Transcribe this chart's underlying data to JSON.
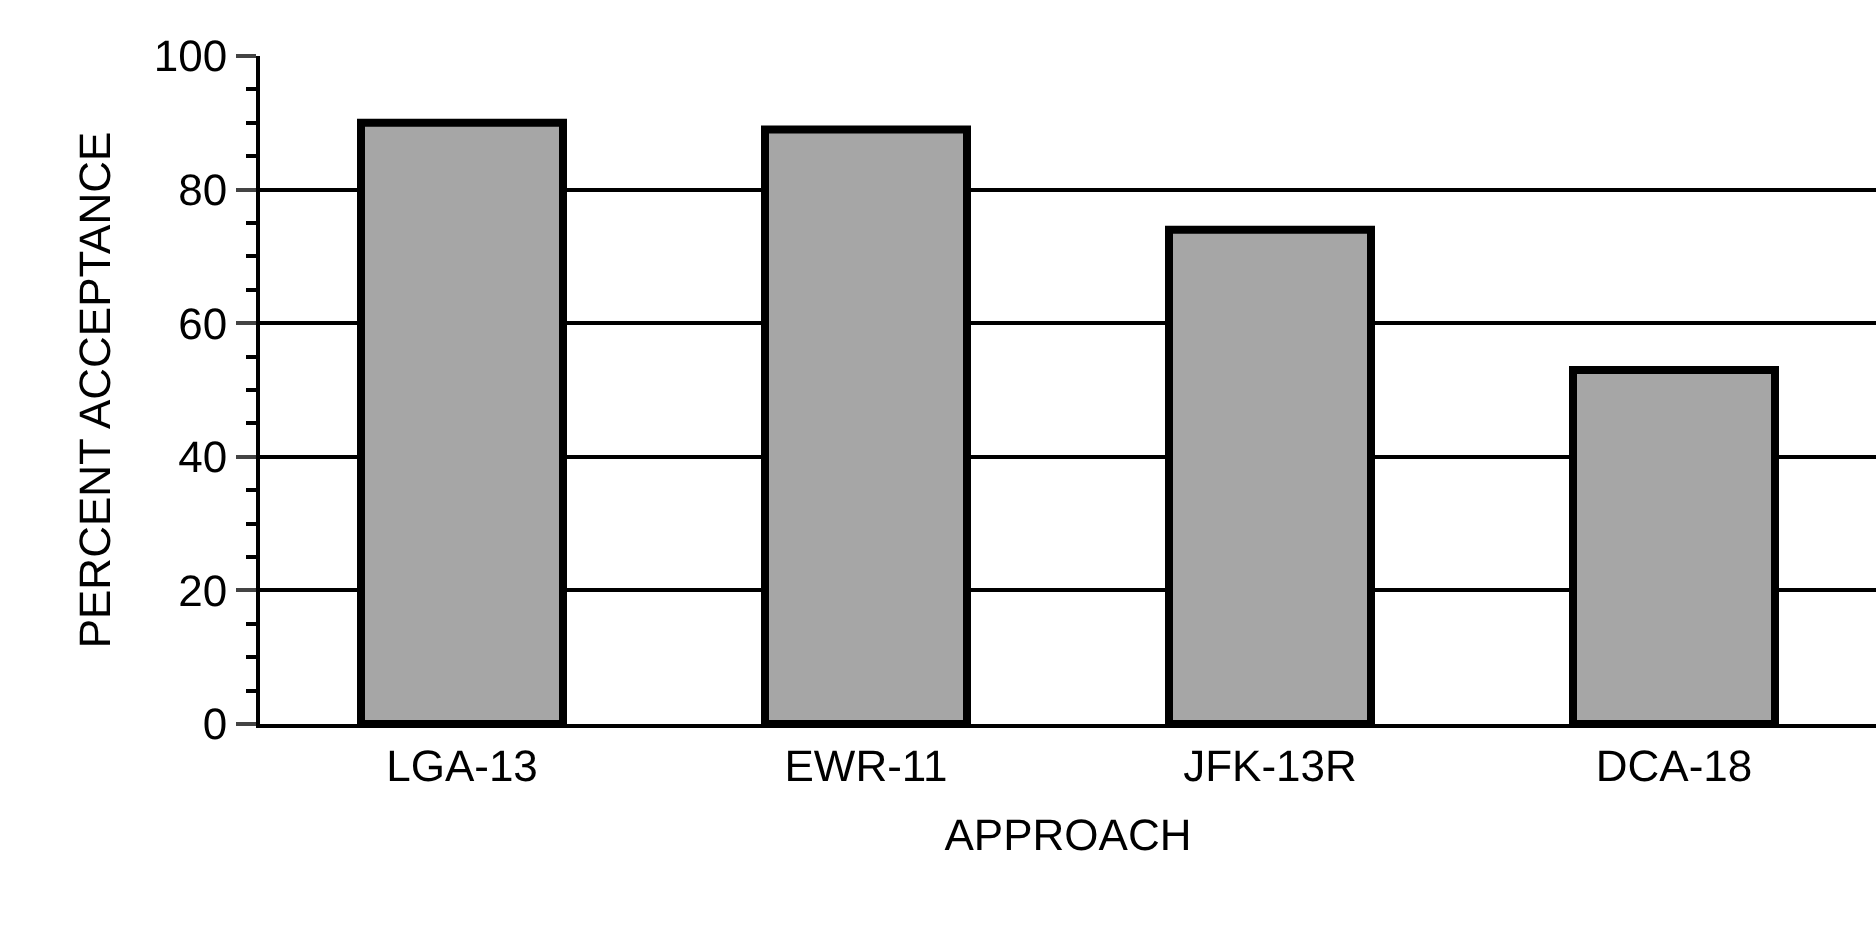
{
  "chart_data": {
    "type": "bar",
    "xlabel": "APPROACH",
    "ylabel": "PERCENT ACCEPTANCE",
    "categories": [
      "LGA-13",
      "EWR-11",
      "JFK-13R",
      "DCA-18"
    ],
    "values": [
      90,
      89,
      74,
      53
    ],
    "color": "#a6a6a6",
    "ylim": [
      0,
      100
    ],
    "yticks": [
      0,
      20,
      40,
      60,
      80,
      100
    ],
    "grid": "y"
  }
}
